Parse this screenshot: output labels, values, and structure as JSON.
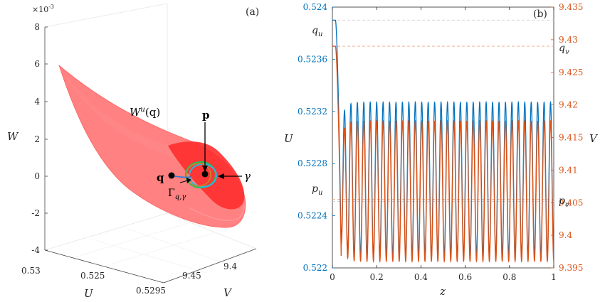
{
  "panel_a": {
    "label": "(a)",
    "axis_W": {
      "label": "W",
      "exponent": "×10",
      "exponent_power": "-3",
      "ticks": [
        "8",
        "6",
        "4",
        "2",
        "0",
        "-2",
        "-4"
      ]
    },
    "axis_U": {
      "label": "U",
      "ticks": [
        "0.53",
        "0.525",
        "0.5295"
      ]
    },
    "axis_V": {
      "label": "V",
      "ticks": [
        "9.45",
        "9.4"
      ]
    },
    "annotations": {
      "manifold": "W",
      "manifold_sup": "u",
      "manifold_arg": "(q)",
      "p": "p",
      "q": "q",
      "gamma": "γ",
      "connection": "Γ",
      "connection_sub": "q,γ"
    },
    "colors": {
      "manifold": "#ff5555",
      "manifold_edge": "#ff3333",
      "marker": "#000000"
    }
  },
  "chart_data": {
    "type": "line",
    "label": "(b)",
    "xlabel": "z",
    "ylabel_left": "U",
    "ylabel_right": "V",
    "xlim": [
      0,
      1
    ],
    "xticks": [
      "0",
      "0.2",
      "0.4",
      "0.6",
      "0.8",
      "1"
    ],
    "ylim_left": [
      0.522,
      0.524
    ],
    "yticks_left": [
      "0.524",
      "0.5236",
      "0.5232",
      "0.5228",
      "0.5224",
      "0.522"
    ],
    "ylim_right": [
      9.395,
      9.435
    ],
    "yticks_right": [
      "9.435",
      "9.43",
      "9.425",
      "9.42",
      "9.415",
      "9.41",
      "9.405",
      "9.4",
      "9.395"
    ],
    "reference_lines": {
      "q_u": {
        "label": "q",
        "sub": "u",
        "value": 0.5239,
        "axis": "left"
      },
      "q_v": {
        "label": "q",
        "sub": "v",
        "value": 9.429,
        "axis": "right"
      },
      "p_u": {
        "label": "p",
        "sub": "u",
        "value": 0.52251,
        "axis": "left"
      },
      "p_v": {
        "label": "p",
        "sub": "v",
        "value": 9.4055,
        "axis": "right"
      }
    },
    "series": [
      {
        "name": "U",
        "axis": "left",
        "color": "#0072bd",
        "start_value": 0.5239,
        "oscillation": {
          "periods": 33,
          "start_z": 0.04,
          "min": 0.5221,
          "max": 0.52327
        }
      },
      {
        "name": "V",
        "axis": "right",
        "color": "#d95319",
        "start_value": 9.429,
        "oscillation": {
          "periods": 33,
          "start_z": 0.04,
          "min": 9.396,
          "max": 9.4175
        }
      }
    ]
  }
}
